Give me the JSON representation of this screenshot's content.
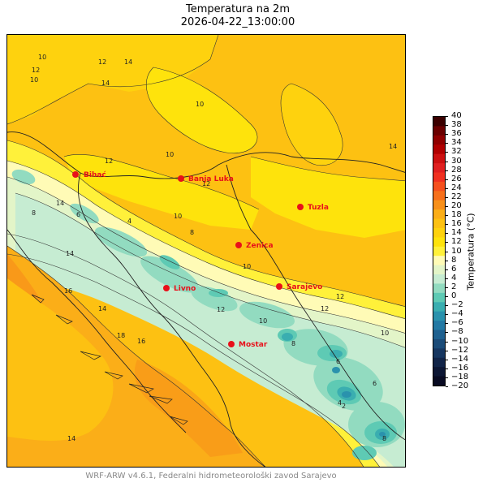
{
  "title": {
    "line1": "Temperatura na 2m",
    "line2": "2026-04-22_13:00:00"
  },
  "colorbar": {
    "label": "Temperatura (°C)",
    "ticks": [
      "40",
      "38",
      "36",
      "34",
      "32",
      "30",
      "28",
      "26",
      "24",
      "22",
      "20",
      "18",
      "16",
      "14",
      "12",
      "10",
      "8",
      "6",
      "4",
      "2",
      "0",
      "−2",
      "−4",
      "−6",
      "−8",
      "−10",
      "−12",
      "−14",
      "−16",
      "−18",
      "−20"
    ],
    "colors": [
      "#3b0000",
      "#6a0000",
      "#8f0000",
      "#b00000",
      "#cc1010",
      "#e02020",
      "#f03020",
      "#f5501e",
      "#f7701c",
      "#f8901a",
      "#fbae18",
      "#fdc112",
      "#fed20e",
      "#fee30c",
      "#fff13a",
      "#fffbb6",
      "#e3f5c8",
      "#c6ecd2",
      "#92dbc0",
      "#5ecab4",
      "#3aaeb0",
      "#2a92ad",
      "#2379a4",
      "#1f6190",
      "#1b4b78",
      "#163660",
      "#112448",
      "#0c1634",
      "#080a22"
    ]
  },
  "cities": [
    {
      "name": "Bihać"
    },
    {
      "name": "Banja Luka"
    },
    {
      "name": "Tuzla"
    },
    {
      "name": "Zenica"
    },
    {
      "name": "Livno"
    },
    {
      "name": "Sarajevo"
    },
    {
      "name": "Mostar"
    }
  ],
  "isotherm_labels": [
    "10",
    "12",
    "14",
    "10",
    "14",
    "10",
    "12",
    "14",
    "10",
    "12",
    "14",
    "12",
    "10",
    "8",
    "6",
    "4",
    "8",
    "10",
    "12",
    "14",
    "16",
    "18",
    "16",
    "14",
    "12",
    "10",
    "8",
    "6",
    "4",
    "2",
    "6",
    "8",
    "10",
    "12",
    "14"
  ],
  "footer": "WRF-ARW v4.6.1, Federalni hidrometeorološki zavod Sarajevo"
}
